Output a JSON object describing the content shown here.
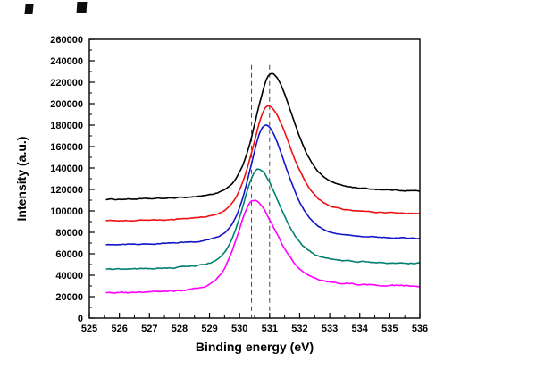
{
  "chart_data": {
    "type": "line",
    "title": "",
    "xlabel": "Binding energy (eV)",
    "ylabel": "Intensity (a.u.)",
    "x_range": [
      525,
      536
    ],
    "y_range": [
      0,
      260000
    ],
    "x_ticks": [
      525,
      526,
      527,
      528,
      529,
      530,
      531,
      532,
      533,
      534,
      535,
      536
    ],
    "y_ticks": [
      0,
      20000,
      40000,
      60000,
      80000,
      100000,
      120000,
      140000,
      160000,
      180000,
      200000,
      220000,
      240000,
      260000
    ],
    "x_minor_step": 0.5,
    "y_minor_step": 10000,
    "grid": false,
    "legend": "none",
    "x_start": 525.55,
    "guide_lines_x": [
      530.4,
      531.0
    ],
    "guide_top": 236000,
    "series": [
      {
        "name": "black",
        "color": "#000000",
        "peak_center": 531.05,
        "peak_intensity": 228000,
        "baseline_left": 110000,
        "baseline_right": 117000,
        "peak_height": 114500,
        "fwhm_left": 1.3,
        "fwhm_right": 1.8,
        "noise": 800
      },
      {
        "name": "red",
        "color": "#ee1111",
        "peak_center": 530.95,
        "peak_intensity": 198000,
        "baseline_left": 90000,
        "baseline_right": 96000,
        "peak_height": 105000,
        "fwhm_left": 1.3,
        "fwhm_right": 1.8,
        "noise": 800
      },
      {
        "name": "blue",
        "color": "#1414c8",
        "peak_center": 530.85,
        "peak_intensity": 180000,
        "baseline_left": 68000,
        "baseline_right": 73000,
        "peak_height": 109500,
        "fwhm_left": 1.25,
        "fwhm_right": 1.75,
        "noise": 800
      },
      {
        "name": "teal",
        "color": "#008070",
        "peak_center": 530.6,
        "peak_intensity": 139000,
        "baseline_left": 45000,
        "baseline_right": 50000,
        "peak_height": 91500,
        "fwhm_left": 1.25,
        "fwhm_right": 1.8,
        "noise": 1000
      },
      {
        "name": "magenta",
        "color": "#ff00ff",
        "peak_center": 530.45,
        "peak_intensity": 110000,
        "baseline_left": 23000,
        "baseline_right": 29000,
        "peak_height": 84000,
        "fwhm_left": 1.3,
        "fwhm_right": 1.9,
        "noise": 1200
      }
    ]
  }
}
